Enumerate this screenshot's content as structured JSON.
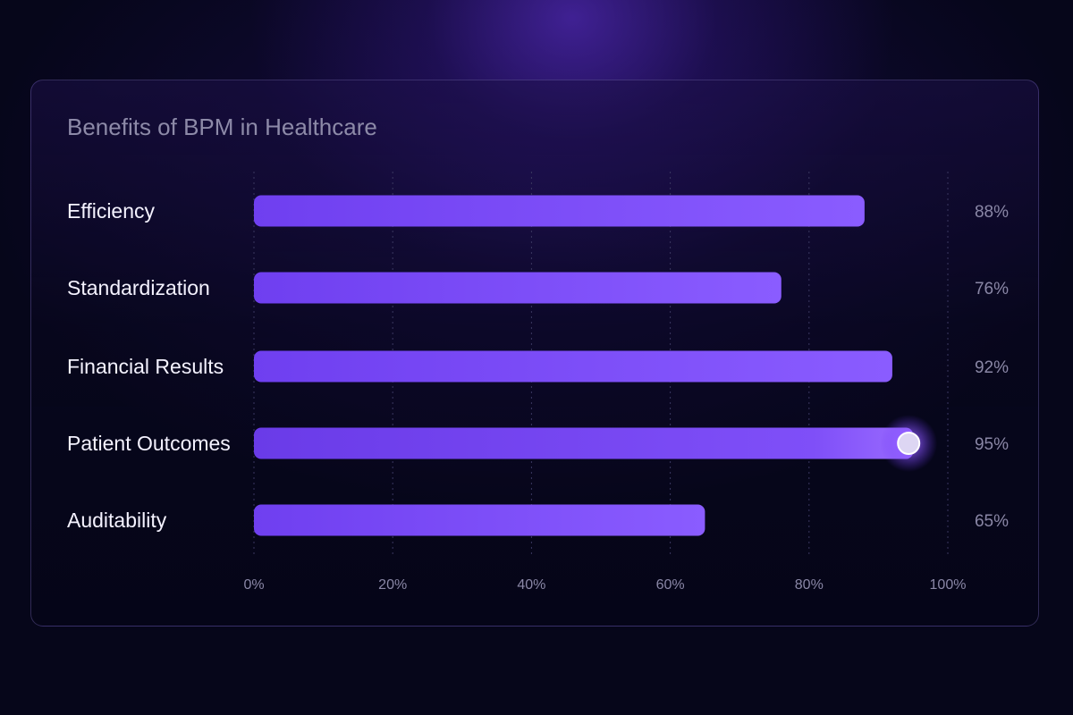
{
  "chart_data": {
    "type": "bar",
    "orientation": "horizontal",
    "title": "Benefits of BPM in Healthcare",
    "categories": [
      "Efficiency",
      "Standardization",
      "Financial Results",
      "Patient Outcomes",
      "Auditability"
    ],
    "values": [
      88,
      76,
      92,
      95,
      65
    ],
    "value_labels": [
      "88%",
      "76%",
      "92%",
      "95%",
      "65%"
    ],
    "xlim": [
      0,
      100
    ],
    "x_ticks": [
      0,
      20,
      40,
      60,
      80,
      100
    ],
    "x_tick_labels": [
      "0%",
      "20%",
      "40%",
      "60%",
      "80%",
      "100%"
    ],
    "grid": true,
    "highlighted_category": "Patient Outcomes"
  },
  "colors": {
    "bar": "#7c4dff",
    "bar_light": "#8f63ff",
    "highlight_marker": "#ddd6f3",
    "text_primary": "#f4f2ff",
    "text_muted": "#8a87a6",
    "title": "#8d8aa8",
    "grid": "#3a3760"
  }
}
